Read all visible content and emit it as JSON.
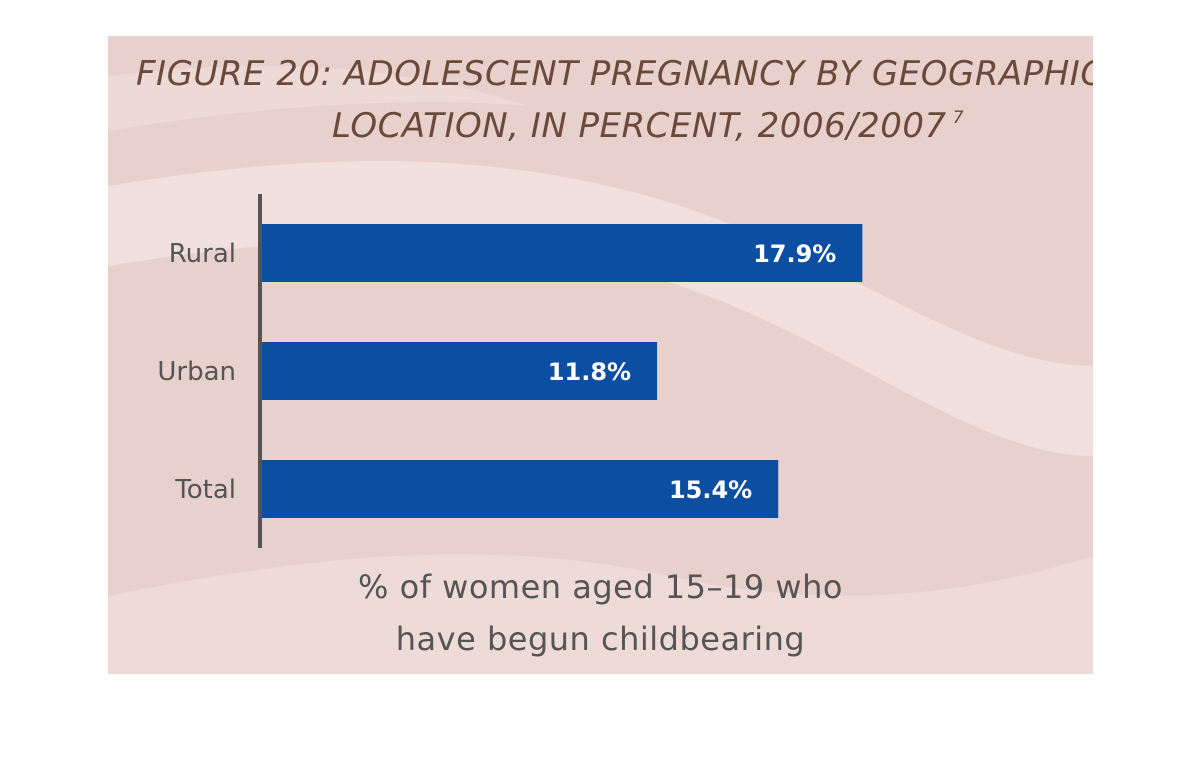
{
  "figure": {
    "title_line1": "FIGURE 20: ADOLESCENT PREGNANCY BY GEOGRAPHIC",
    "title_line2": "LOCATION, IN PERCENT, 2006/2007",
    "title_footnote": "7",
    "xlabel_line1": "% of women aged 15–19 who",
    "xlabel_line2": "have begun childbearing"
  },
  "colors": {
    "background": "#e8d1cc",
    "wave": "#f2e3e0",
    "bar": "#0b4ea2",
    "axis": "#555555",
    "title": "#6b4a3c"
  },
  "chart_data": {
    "type": "bar",
    "orientation": "horizontal",
    "categories": [
      "Rural",
      "Urban",
      "Total"
    ],
    "values": [
      17.9,
      11.8,
      15.4
    ],
    "data_labels": [
      "17.9%",
      "11.8%",
      "15.4%"
    ],
    "title": "FIGURE 20: ADOLESCENT PREGNANCY BY GEOGRAPHIC LOCATION, IN PERCENT, 2006/2007",
    "xlabel": "% of women aged 15–19 who have begun childbearing",
    "ylabel": "",
    "xlim": [
      0,
      20
    ],
    "grid": false,
    "legend": "none"
  }
}
